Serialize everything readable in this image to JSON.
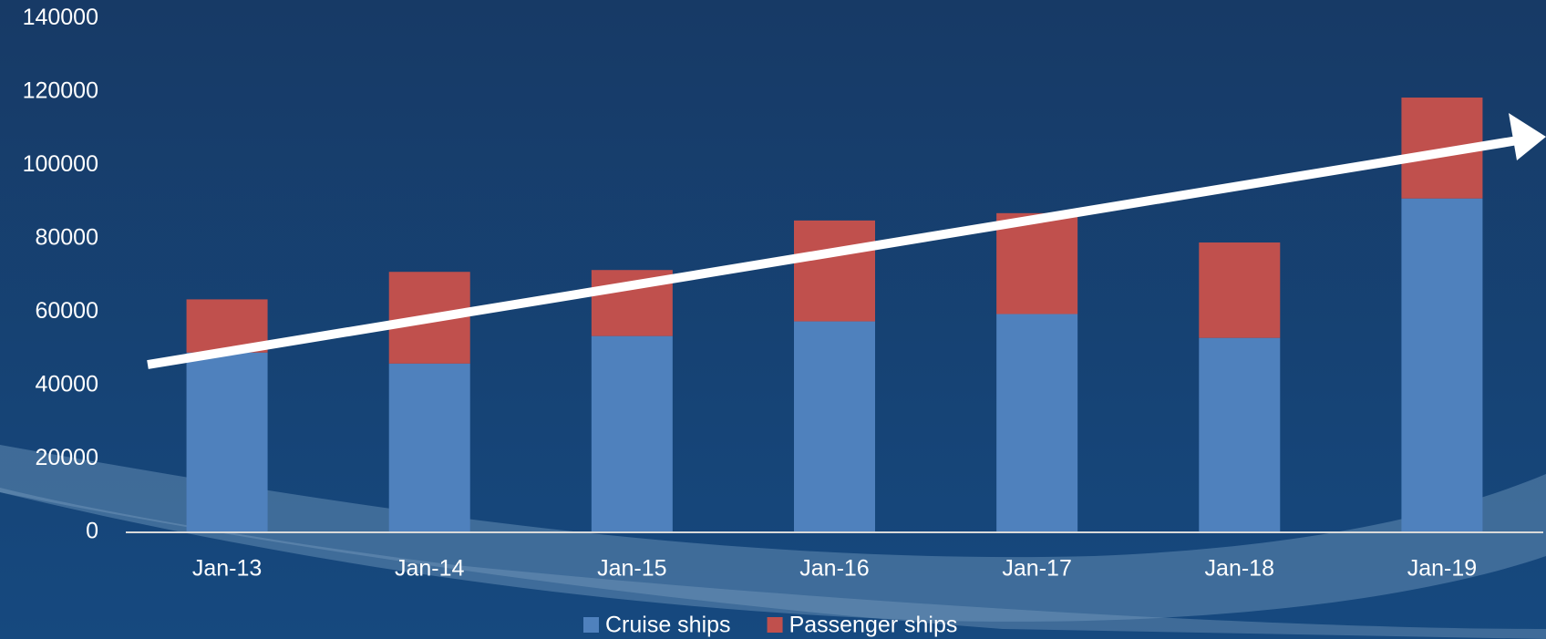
{
  "chart_data": {
    "type": "stacked_bar",
    "categories": [
      "Jan-13",
      "Jan-14",
      "Jan-15",
      "Jan-16",
      "Jan-17",
      "Jan-18",
      "Jan-19"
    ],
    "series": [
      {
        "name": "Cruise ships",
        "color": "#4f81bd",
        "values": [
          49000,
          46000,
          53500,
          57500,
          59500,
          53000,
          91000
        ]
      },
      {
        "name": "Passenger ships",
        "color": "#c0504d",
        "values": [
          14500,
          25000,
          18000,
          27500,
          27500,
          26000,
          27500
        ]
      }
    ],
    "ylim": [
      0,
      140000
    ],
    "yticks": [
      0,
      20000,
      40000,
      60000,
      80000,
      100000,
      120000,
      140000
    ],
    "grid": false,
    "legend": "bottom"
  }
}
